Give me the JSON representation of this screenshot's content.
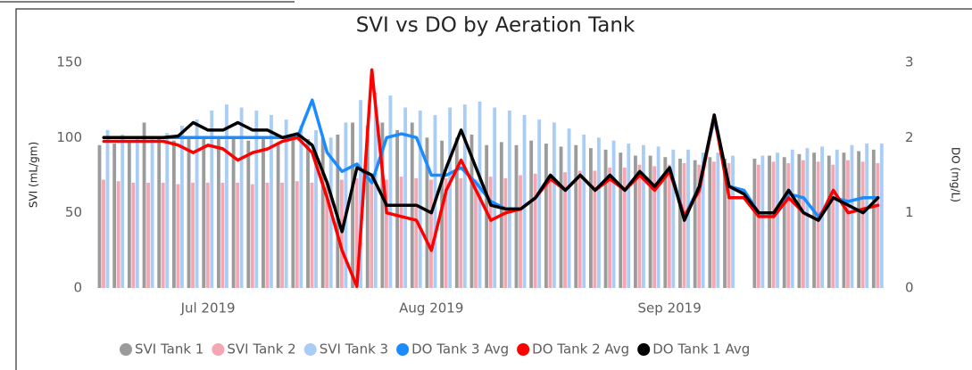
{
  "chart_data": {
    "type": "combo",
    "title": "SVI vs DO by Aeration Tank",
    "y_label": "SVI (mL/gm)",
    "y2_label": "DO (mg/L)",
    "categories": [
      null,
      null,
      null,
      null,
      null,
      null,
      null,
      "Jul 2019",
      null,
      null,
      null,
      null,
      null,
      null,
      null,
      null,
      null,
      null,
      null,
      null,
      null,
      null,
      "Aug 2019",
      null,
      null,
      null,
      null,
      null,
      null,
      null,
      null,
      null,
      null,
      null,
      null,
      null,
      null,
      null,
      "Sep 2019",
      null,
      null,
      null,
      null,
      null,
      null,
      null,
      null,
      null,
      null,
      null,
      null,
      null,
      null
    ],
    "ylim": [
      0,
      150
    ],
    "yticks": [
      0,
      50,
      100,
      150
    ],
    "y2lim": [
      0,
      3
    ],
    "y2ticks": [
      0,
      1,
      2,
      3
    ],
    "grid": false,
    "legend": "bottom",
    "series": [
      {
        "name": "SVI Tank 1",
        "type": "bar",
        "color": "#9b9b9b",
        "values": [
          95,
          96,
          97,
          110,
          100,
          98,
          99,
          100,
          99,
          100,
          98,
          100,
          97,
          100,
          99,
          100,
          102,
          110,
          108,
          110,
          105,
          110,
          100,
          98,
          100,
          102,
          95,
          97,
          95,
          98,
          96,
          94,
          95,
          93,
          92,
          90,
          88,
          88,
          87,
          86,
          85,
          87,
          86,
          null,
          86,
          88,
          87,
          89,
          90,
          88,
          90,
          91,
          92
        ]
      },
      {
        "name": "SVI Tank 2",
        "type": "bar",
        "color": "#f4a7b2",
        "values": [
          72,
          71,
          70,
          70,
          70,
          69,
          70,
          70,
          70,
          70,
          69,
          70,
          70,
          71,
          70,
          70,
          72,
          73,
          74,
          72,
          74,
          73,
          72,
          73,
          73,
          72,
          74,
          73,
          75,
          76,
          75,
          77,
          78,
          78,
          80,
          80,
          82,
          81,
          82,
          83,
          82,
          84,
          83,
          null,
          82,
          84,
          83,
          85,
          84,
          82,
          85,
          84,
          83
        ]
      },
      {
        "name": "SVI Tank 3",
        "type": "bar",
        "color": "#a9cdf5",
        "values": [
          105,
          102,
          100,
          101,
          103,
          108,
          112,
          118,
          122,
          120,
          118,
          115,
          112,
          108,
          105,
          100,
          110,
          125,
          130,
          128,
          120,
          118,
          115,
          120,
          122,
          124,
          120,
          118,
          115,
          112,
          110,
          106,
          102,
          100,
          98,
          96,
          95,
          94,
          92,
          92,
          90,
          90,
          88,
          null,
          88,
          90,
          92,
          93,
          94,
          92,
          95,
          96,
          96
        ]
      },
      {
        "name": "DO Tank 3 Avg",
        "type": "line",
        "axis": "y2",
        "color": "#1a8cff",
        "values": [
          2.0,
          2.0,
          2.0,
          2.0,
          2.0,
          2.0,
          2.0,
          2.0,
          2.0,
          2.0,
          2.0,
          2.0,
          2.0,
          2.0,
          2.5,
          1.8,
          1.55,
          1.65,
          1.4,
          2.0,
          2.05,
          2.0,
          1.5,
          1.5,
          1.6,
          1.4,
          1.15,
          1.05,
          1.05,
          1.2,
          1.5,
          1.3,
          1.5,
          1.3,
          1.5,
          1.3,
          1.55,
          1.35,
          1.6,
          0.95,
          1.35,
          2.25,
          1.35,
          1.3,
          1.0,
          1.0,
          1.25,
          1.2,
          0.95,
          1.2,
          1.15,
          1.2,
          1.2
        ]
      },
      {
        "name": "DO Tank 2 Avg",
        "type": "line",
        "axis": "y2",
        "color": "#ff0000",
        "values": [
          1.95,
          1.95,
          1.95,
          1.95,
          1.95,
          1.9,
          1.8,
          1.9,
          1.85,
          1.7,
          1.8,
          1.85,
          1.95,
          2.0,
          1.8,
          1.2,
          0.5,
          0.02,
          2.9,
          1.0,
          0.95,
          0.9,
          0.5,
          1.3,
          1.7,
          1.3,
          0.9,
          1.0,
          1.05,
          1.2,
          1.45,
          1.3,
          1.5,
          1.3,
          1.45,
          1.3,
          1.5,
          1.3,
          1.55,
          0.95,
          1.3,
          2.3,
          1.2,
          1.2,
          0.95,
          0.95,
          1.2,
          1.0,
          0.9,
          1.3,
          1.0,
          1.05,
          1.1
        ]
      },
      {
        "name": "DO Tank 1 Avg",
        "type": "line",
        "axis": "y2",
        "color": "#000000",
        "values": [
          2.0,
          2.0,
          2.0,
          2.0,
          2.0,
          2.02,
          2.2,
          2.1,
          2.1,
          2.2,
          2.1,
          2.1,
          2.0,
          2.05,
          1.9,
          1.4,
          0.75,
          1.6,
          1.5,
          1.1,
          1.1,
          1.1,
          1.0,
          1.6,
          2.1,
          1.6,
          1.1,
          1.05,
          1.05,
          1.2,
          1.5,
          1.3,
          1.5,
          1.3,
          1.5,
          1.3,
          1.55,
          1.35,
          1.6,
          0.9,
          1.35,
          2.3,
          1.35,
          1.25,
          1.0,
          1.0,
          1.3,
          1.0,
          0.9,
          1.2,
          1.1,
          1.0,
          1.2
        ]
      }
    ]
  }
}
